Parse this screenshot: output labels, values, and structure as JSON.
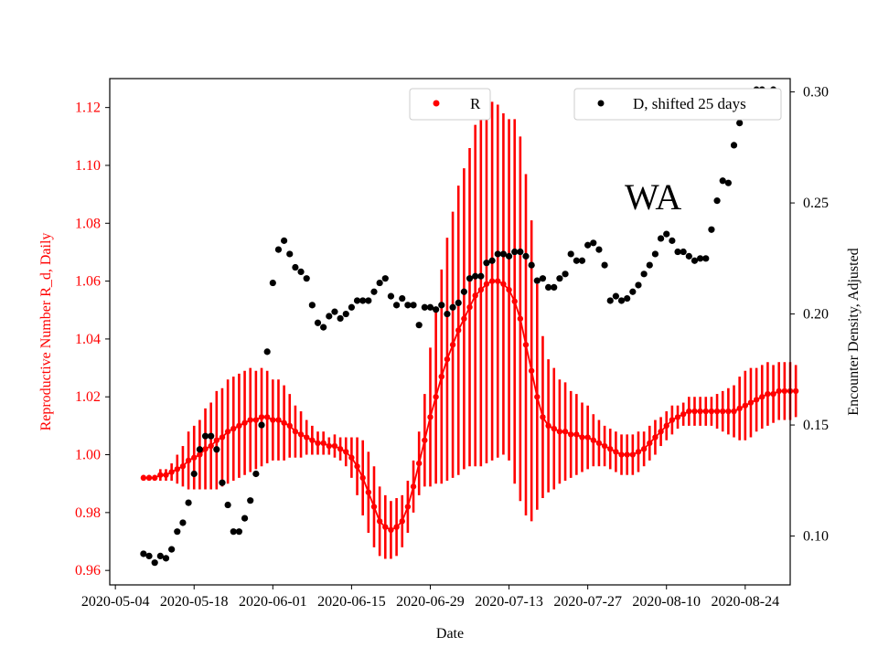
{
  "chart_data": {
    "type": "scatter",
    "title": "",
    "annotation": "WA",
    "xlabel": "Date",
    "ylabel_left": "Reproductive Number R_d, Daily",
    "ylabel_right": "Encounter Density, Adjusted",
    "x_range": [
      "2020-05-03",
      "2020-09-01"
    ],
    "ylim_left": [
      0.955,
      1.13
    ],
    "ylim_right": [
      0.078,
      0.306
    ],
    "x_ticks": [
      "2020-05-04",
      "2020-05-18",
      "2020-06-01",
      "2020-06-15",
      "2020-06-29",
      "2020-07-13",
      "2020-07-27",
      "2020-08-10",
      "2020-08-24"
    ],
    "y_ticks_left": [
      "0.96",
      "0.98",
      "1.00",
      "1.02",
      "1.04",
      "1.06",
      "1.08",
      "1.10",
      "1.12"
    ],
    "y_ticks_right": [
      "0.10",
      "0.15",
      "0.20",
      "0.25",
      "0.30"
    ],
    "legend_left": {
      "label": "R",
      "placement": "top-center"
    },
    "legend_right": {
      "label": "D, shifted 25 days",
      "placement": "top-right"
    },
    "colors": {
      "R": "#ff0000",
      "D": "#000000",
      "axis": "#000000"
    },
    "series": [
      {
        "name": "R",
        "axis": "left",
        "start_date": "2020-05-09",
        "values": [
          0.992,
          0.992,
          0.992,
          0.993,
          0.993,
          0.994,
          0.995,
          0.996,
          0.998,
          0.999,
          1.0,
          1.002,
          1.003,
          1.005,
          1.006,
          1.008,
          1.009,
          1.01,
          1.011,
          1.012,
          1.012,
          1.013,
          1.013,
          1.012,
          1.012,
          1.011,
          1.01,
          1.008,
          1.007,
          1.006,
          1.005,
          1.004,
          1.004,
          1.003,
          1.003,
          1.002,
          1.001,
          0.999,
          0.996,
          0.992,
          0.987,
          0.982,
          0.977,
          0.975,
          0.974,
          0.975,
          0.977,
          0.982,
          0.989,
          0.997,
          1.005,
          1.013,
          1.02,
          1.027,
          1.033,
          1.038,
          1.043,
          1.047,
          1.051,
          1.055,
          1.057,
          1.059,
          1.06,
          1.06,
          1.059,
          1.057,
          1.053,
          1.047,
          1.038,
          1.029,
          1.02,
          1.013,
          1.01,
          1.009,
          1.008,
          1.008,
          1.007,
          1.007,
          1.006,
          1.006,
          1.005,
          1.004,
          1.003,
          1.002,
          1.001,
          1.0,
          1.0,
          1.0,
          1.001,
          1.002,
          1.004,
          1.006,
          1.008,
          1.01,
          1.012,
          1.013,
          1.014,
          1.015,
          1.015,
          1.015,
          1.015,
          1.015,
          1.015,
          1.015,
          1.015,
          1.015,
          1.016,
          1.017,
          1.018,
          1.019,
          1.02,
          1.021,
          1.021,
          1.022,
          1.022,
          1.022,
          1.022
        ],
        "lower": [
          0.991,
          0.991,
          0.991,
          0.991,
          0.991,
          0.991,
          0.99,
          0.989,
          0.988,
          0.988,
          0.988,
          0.988,
          0.988,
          0.988,
          0.989,
          0.99,
          0.991,
          0.992,
          0.993,
          0.994,
          0.995,
          0.996,
          0.997,
          0.998,
          0.998,
          0.998,
          0.999,
          0.999,
          0.999,
          1.0,
          1.0,
          1.0,
          1.0,
          1.0,
          0.999,
          0.998,
          0.996,
          0.992,
          0.986,
          0.979,
          0.973,
          0.968,
          0.965,
          0.964,
          0.964,
          0.965,
          0.968,
          0.973,
          0.98,
          0.986,
          0.989,
          0.989,
          0.99,
          0.99,
          0.991,
          0.992,
          0.993,
          0.995,
          0.996,
          0.996,
          0.996,
          0.997,
          0.998,
          0.999,
          1.0,
          0.998,
          0.99,
          0.984,
          0.979,
          0.977,
          0.981,
          0.985,
          0.987,
          0.988,
          0.99,
          0.991,
          0.992,
          0.993,
          0.994,
          0.995,
          0.996,
          0.996,
          0.996,
          0.995,
          0.994,
          0.993,
          0.993,
          0.993,
          0.994,
          0.996,
          0.998,
          1.0,
          1.003,
          1.005,
          1.007,
          1.009,
          1.01,
          1.01,
          1.01,
          1.01,
          1.01,
          1.01,
          1.009,
          1.008,
          1.007,
          1.006,
          1.005,
          1.005,
          1.006,
          1.008,
          1.009,
          1.01,
          1.011,
          1.012,
          1.012,
          1.012,
          1.013
        ],
        "upper": [
          0.993,
          0.993,
          0.993,
          0.995,
          0.995,
          0.997,
          1.0,
          1.003,
          1.008,
          1.01,
          1.012,
          1.016,
          1.018,
          1.022,
          1.023,
          1.026,
          1.027,
          1.028,
          1.029,
          1.03,
          1.029,
          1.03,
          1.029,
          1.026,
          1.026,
          1.024,
          1.021,
          1.017,
          1.015,
          1.012,
          1.01,
          1.008,
          1.008,
          1.006,
          1.007,
          1.006,
          1.006,
          1.006,
          1.006,
          1.005,
          1.001,
          0.996,
          0.989,
          0.986,
          0.984,
          0.985,
          0.986,
          0.991,
          0.998,
          1.008,
          1.021,
          1.037,
          1.05,
          1.064,
          1.075,
          1.084,
          1.093,
          1.099,
          1.106,
          1.114,
          1.118,
          1.121,
          1.122,
          1.121,
          1.118,
          1.116,
          1.116,
          1.11,
          1.097,
          1.081,
          1.059,
          1.041,
          1.033,
          1.03,
          1.026,
          1.025,
          1.022,
          1.021,
          1.018,
          1.017,
          1.014,
          1.012,
          1.01,
          1.009,
          1.008,
          1.007,
          1.007,
          1.007,
          1.008,
          1.008,
          1.01,
          1.012,
          1.013,
          1.015,
          1.017,
          1.017,
          1.018,
          1.02,
          1.02,
          1.02,
          1.02,
          1.02,
          1.021,
          1.022,
          1.023,
          1.024,
          1.027,
          1.029,
          1.03,
          1.03,
          1.031,
          1.032,
          1.031,
          1.032,
          1.032,
          1.032,
          1.031
        ]
      },
      {
        "name": "D, shifted 25 days",
        "axis": "right",
        "start_date": "2020-05-09",
        "values": [
          0.092,
          0.091,
          0.088,
          0.091,
          0.09,
          0.094,
          0.102,
          0.106,
          0.115,
          0.128,
          0.139,
          0.145,
          0.145,
          0.139,
          0.124,
          0.114,
          0.102,
          0.102,
          0.108,
          0.116,
          0.128,
          0.15,
          0.183,
          0.214,
          0.229,
          0.233,
          0.227,
          0.221,
          0.219,
          0.216,
          0.204,
          0.196,
          0.194,
          0.199,
          0.201,
          0.198,
          0.2,
          0.203,
          0.206,
          0.206,
          0.206,
          0.21,
          0.214,
          0.216,
          0.208,
          0.204,
          0.207,
          0.204,
          0.204,
          0.195,
          0.203,
          0.203,
          0.202,
          0.204,
          0.2,
          0.203,
          0.205,
          0.21,
          0.216,
          0.217,
          0.217,
          0.223,
          0.224,
          0.227,
          0.227,
          0.226,
          0.228,
          0.228,
          0.226,
          0.222,
          0.215,
          0.216,
          0.212,
          0.212,
          0.216,
          0.218,
          0.227,
          0.224,
          0.224,
          0.231,
          0.232,
          0.229,
          0.222,
          0.206,
          0.208,
          0.206,
          0.207,
          0.21,
          0.213,
          0.218,
          0.222,
          0.227,
          0.234,
          0.236,
          0.233,
          0.228,
          0.228,
          0.226,
          0.224,
          0.225,
          0.225,
          0.238,
          0.251,
          0.26,
          0.259,
          0.276,
          0.286,
          0.293,
          0.299,
          0.301,
          0.301,
          0.3,
          0.301
        ]
      }
    ]
  }
}
